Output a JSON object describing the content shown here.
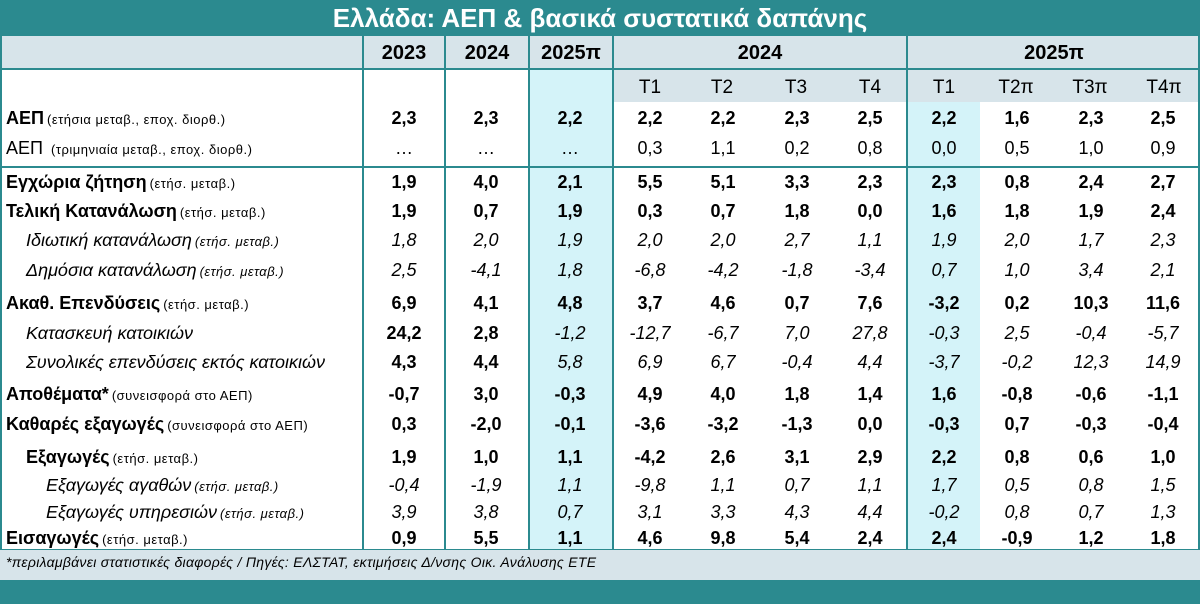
{
  "title": "Ελλάδα: ΑΕΠ & βασικά συστατικά δαπάνης",
  "year_headers": [
    "2023",
    "2024",
    "2025π"
  ],
  "group_headers": [
    "2024",
    "2025π"
  ],
  "quarters": [
    "T1",
    "T2",
    "T3",
    "T4",
    "T1",
    "T2π",
    "T3π",
    "T4π"
  ],
  "rows": [
    {
      "label": "ΑΕΠ",
      "unit": "(ετήσια μεταβ., εποχ. διορθ.)",
      "style": "bold",
      "values": [
        "2,3",
        "2,3",
        "2,2",
        "2,2",
        "2,2",
        "2,3",
        "2,5",
        "2,2",
        "1,6",
        "2,3",
        "2,5"
      ]
    },
    {
      "label": "ΑΕΠ ",
      "unit": "(τριμηνιαία μεταβ., εποχ. διορθ.)",
      "style": "plain",
      "values": [
        "…",
        "…",
        "…",
        "0,3",
        "1,1",
        "0,2",
        "0,8",
        "0,0",
        "0,5",
        "1,0",
        "0,9"
      ]
    },
    {
      "label": "Εγχώρια ζήτηση",
      "unit": "(ετήσ. μεταβ.)",
      "style": "bold",
      "values": [
        "1,9",
        "4,0",
        "2,1",
        "5,5",
        "5,1",
        "3,3",
        "2,3",
        "2,3",
        "0,8",
        "2,4",
        "2,7"
      ]
    },
    {
      "label": "Τελική Κατανάλωση",
      "unit": "(ετήσ. μεταβ.)",
      "style": "bold",
      "values": [
        "1,9",
        "0,7",
        "1,9",
        "0,3",
        "0,7",
        "1,8",
        "0,0",
        "1,6",
        "1,8",
        "1,9",
        "2,4"
      ]
    },
    {
      "label": "Ιδιωτική κατανάλωση",
      "unit": "(ετήσ. μεταβ.)",
      "style": "italic",
      "indent": 1,
      "values": [
        "1,8",
        "2,0",
        "1,9",
        "2,0",
        "2,0",
        "2,7",
        "1,1",
        "1,9",
        "2,0",
        "1,7",
        "2,3"
      ]
    },
    {
      "label": "Δημόσια κατανάλωση",
      "unit": "(ετήσ. μεταβ.)",
      "style": "italic",
      "indent": 1,
      "values": [
        "2,5",
        "-4,1",
        "1,8",
        "-6,8",
        "-4,2",
        "-1,8",
        "-3,4",
        "0,7",
        "1,0",
        "3,4",
        "2,1"
      ]
    },
    {
      "label": "Ακαθ. Επενδύσεις",
      "unit": "(ετήσ. μεταβ.)",
      "style": "bold",
      "values": [
        "6,9",
        "4,1",
        "4,8",
        "3,7",
        "4,6",
        "0,7",
        "7,6",
        "-3,2",
        "0,2",
        "10,3",
        "11,6"
      ]
    },
    {
      "label": "Κατασκευή κατοικιών",
      "unit": "",
      "style": "italic",
      "indent": 1,
      "first_bold": true,
      "values": [
        "24,2",
        "2,8",
        "-1,2",
        "-12,7",
        "-6,7",
        "7,0",
        "27,8",
        "-0,3",
        "2,5",
        "-0,4",
        "-5,7"
      ]
    },
    {
      "label": "Συνολικές επενδύσεις εκτός κατοικιών",
      "unit": "",
      "style": "italic",
      "indent": 1,
      "first_bold": true,
      "values": [
        "4,3",
        "4,4",
        "5,8",
        "6,9",
        "6,7",
        "-0,4",
        "4,4",
        "-3,7",
        "-0,2",
        "12,3",
        "14,9"
      ]
    },
    {
      "label": "Αποθέματα*",
      "unit": "(συνεισφορά στο ΑΕΠ)",
      "style": "bold",
      "values": [
        "-0,7",
        "3,0",
        "-0,3",
        "4,9",
        "4,0",
        "1,8",
        "1,4",
        "1,6",
        "-0,8",
        "-0,6",
        "-1,1"
      ]
    },
    {
      "label": "Καθαρές εξαγωγές",
      "unit": "(συνεισφορά στο ΑΕΠ)",
      "style": "bold",
      "values": [
        "0,3",
        "-2,0",
        "-0,1",
        "-3,6",
        "-3,2",
        "-1,3",
        "0,0",
        "-0,3",
        "0,7",
        "-0,3",
        "-0,4"
      ]
    },
    {
      "label": "Εξαγωγές",
      "unit": "(ετήσ. μεταβ.)",
      "style": "bold",
      "indent": 1,
      "values": [
        "1,9",
        "1,0",
        "1,1",
        "-4,2",
        "2,6",
        "3,1",
        "2,9",
        "2,2",
        "0,8",
        "0,6",
        "1,0"
      ]
    },
    {
      "label": "Εξαγωγές αγαθών",
      "unit": "(ετήσ. μεταβ.)",
      "style": "italic",
      "indent": 2,
      "values": [
        "-0,4",
        "-1,9",
        "1,1",
        "-9,8",
        "1,1",
        "0,7",
        "1,1",
        "1,7",
        "0,5",
        "0,8",
        "1,5"
      ]
    },
    {
      "label": "Εξαγωγές υπηρεσιών",
      "unit": "(ετήσ. μεταβ.)",
      "style": "italic",
      "indent": 2,
      "values": [
        "3,9",
        "3,8",
        "0,7",
        "3,1",
        "3,3",
        "4,3",
        "4,4",
        "-0,2",
        "0,8",
        "0,7",
        "1,3"
      ]
    },
    {
      "label": "Εισαγωγές",
      "unit": "(ετήσ. μεταβ.)",
      "style": "bold",
      "values": [
        "0,9",
        "5,5",
        "1,1",
        "4,6",
        "9,8",
        "5,4",
        "2,4",
        "2,4",
        "-0,9",
        "1,2",
        "1,8"
      ]
    }
  ],
  "footnote": "*περιλαμβάνει στατιστικές διαφορές / Πηγές: ΕΛΣΤΑΤ, εκτιμήσεις Δ/νσης Οικ. Ανάλυσης ΕΤΕ",
  "colors": {
    "teal": "#2b8a8f",
    "light": "#d7e4ea",
    "highlight": "#d4f3f9"
  }
}
